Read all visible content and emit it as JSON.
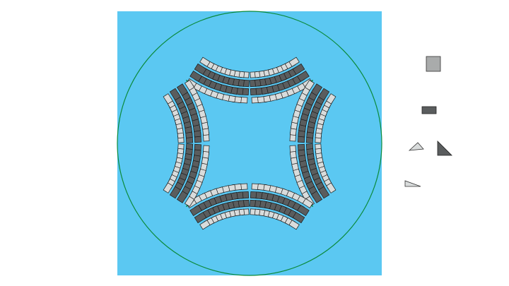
{
  "canvas": {
    "background_color": "#5bc8f2",
    "guide_color": "#0a8a3a",
    "light_tile_color": "#d9dcdc",
    "dark_tile_color": "#5a5d5e",
    "outline_color": "#1a1a1a"
  },
  "figure": {
    "symmetry": "4-fold",
    "arc_families": 4,
    "tiles_per_row": 10
  },
  "palette": {
    "items": [
      {
        "name": "square-tile",
        "color": "#a9abab"
      },
      {
        "name": "rectangle-tile",
        "color": "#5a5d5e"
      },
      {
        "name": "small-light-triangle",
        "color": "#d9dcdc"
      },
      {
        "name": "dark-triangle",
        "color": "#5a5d5e"
      },
      {
        "name": "thin-light-triangle",
        "color": "#d9dcdc"
      }
    ]
  }
}
